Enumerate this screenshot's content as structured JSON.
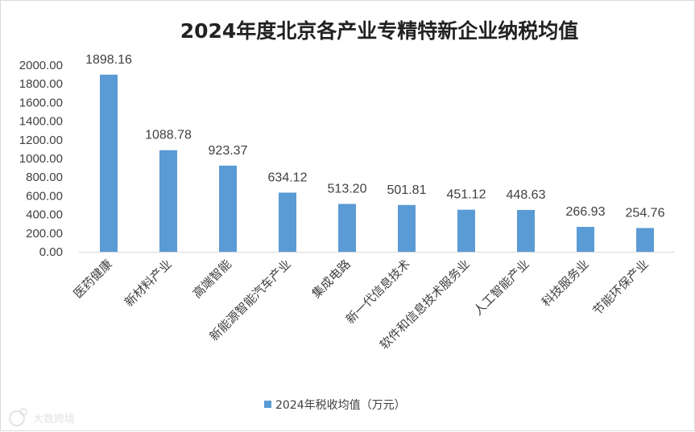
{
  "chart_data": {
    "type": "bar",
    "title": "2024年度北京各产业专精特新企业纳税均值",
    "categories": [
      "医药健康",
      "新材料产业",
      "高端智能",
      "新能源智能汽车产业",
      "集成电路",
      "新一代信息技术",
      "软件和信息技术服务业",
      "人工智能产业",
      "科技服务业",
      "节能环保产业"
    ],
    "series": [
      {
        "name": "2024年税收均值（万元）",
        "values": [
          1898.16,
          1088.78,
          923.37,
          634.12,
          513.2,
          501.81,
          451.12,
          448.63,
          266.93,
          254.76
        ]
      }
    ],
    "value_labels": [
      "1898.16",
      "1088.78",
      "923.37",
      "634.12",
      "513.20",
      "501.81",
      "451.12",
      "448.63",
      "266.93",
      "254.76"
    ],
    "y_ticks": [
      "0.00",
      "200.00",
      "400.00",
      "600.00",
      "800.00",
      "1000.00",
      "1200.00",
      "1400.00",
      "1600.00",
      "1800.00",
      "2000.00"
    ],
    "ylim": [
      0,
      2000
    ],
    "grid": false,
    "legend": "bottom",
    "bar_color": "#5b9bd5"
  },
  "watermark": "大数跨境"
}
